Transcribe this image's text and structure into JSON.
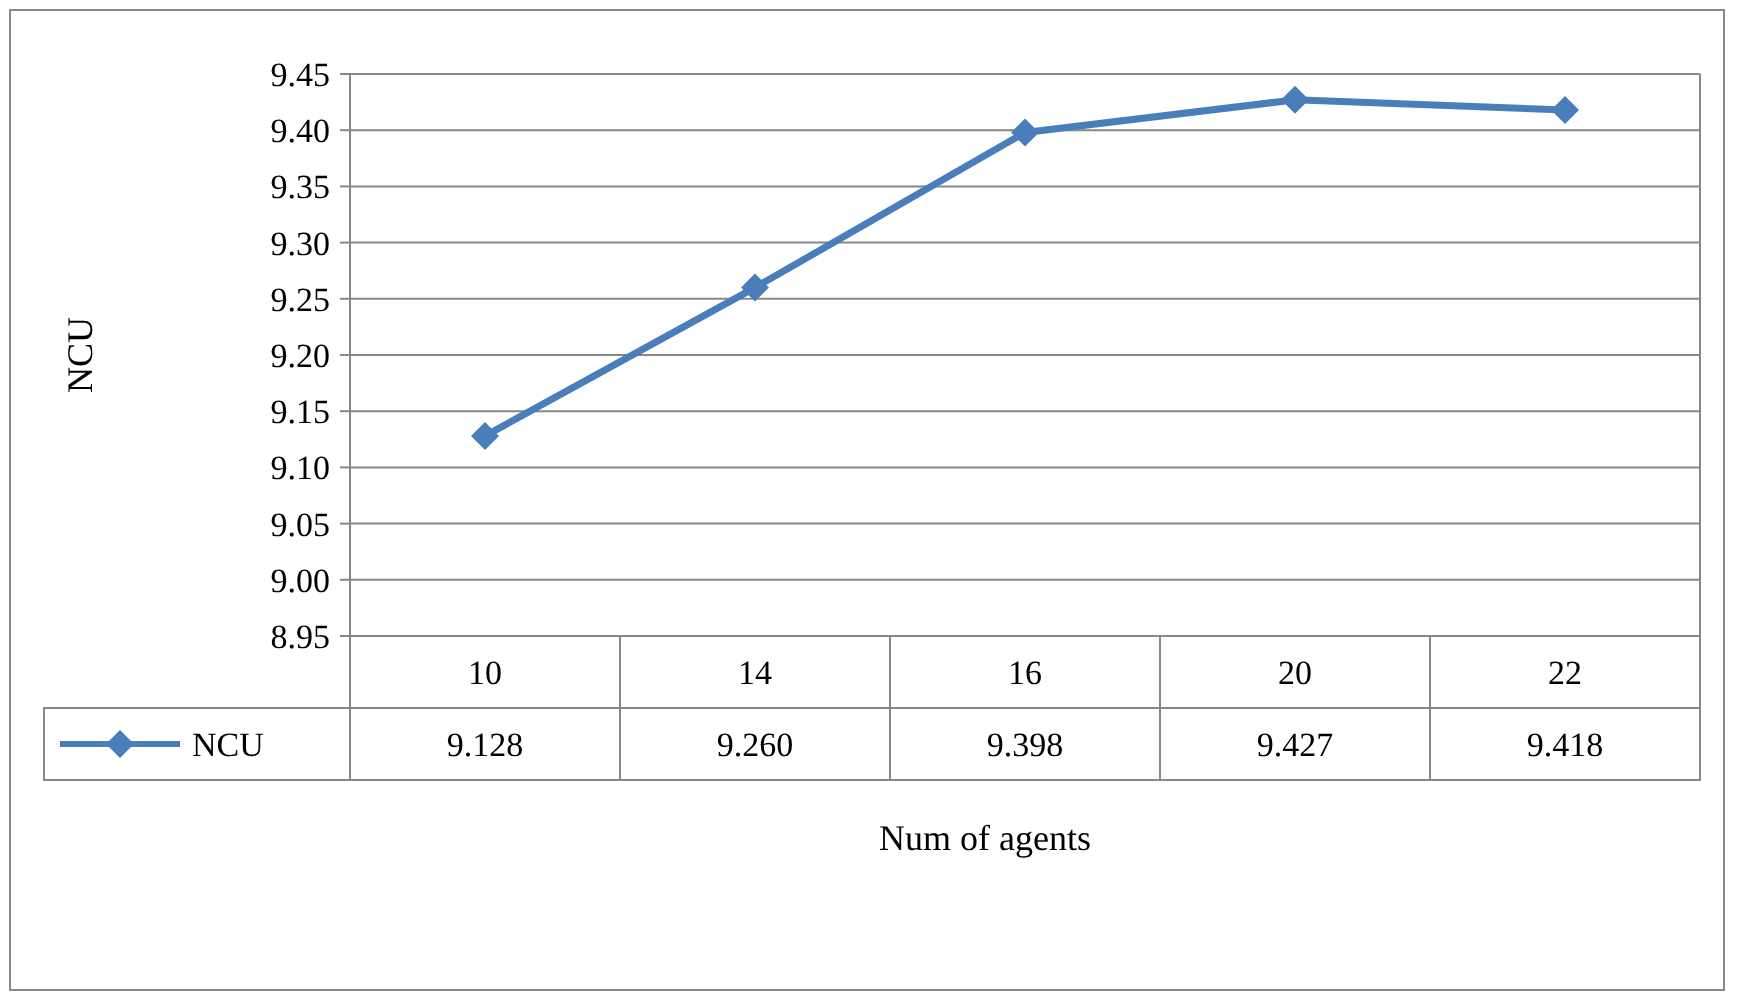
{
  "chart_data": {
    "type": "line",
    "xlabel": "Num of agents",
    "ylabel": "NCU",
    "categories": [
      "10",
      "14",
      "16",
      "20",
      "22"
    ],
    "series": [
      {
        "name": "NCU",
        "color": "#4a7ebb",
        "values": [
          9.128,
          9.26,
          9.398,
          9.427,
          9.418
        ],
        "value_labels": [
          "9.128",
          "9.260",
          "9.398",
          "9.427",
          "9.418"
        ]
      }
    ],
    "ylim": [
      8.95,
      9.45
    ],
    "yticks": [
      {
        "value": 8.95,
        "label": "8.95"
      },
      {
        "value": 9.0,
        "label": "9.00"
      },
      {
        "value": 9.05,
        "label": "9.05"
      },
      {
        "value": 9.1,
        "label": "9.10"
      },
      {
        "value": 9.15,
        "label": "9.15"
      },
      {
        "value": 9.2,
        "label": "9.20"
      },
      {
        "value": 9.25,
        "label": "9.25"
      },
      {
        "value": 9.3,
        "label": "9.30"
      },
      {
        "value": 9.35,
        "label": "9.35"
      },
      {
        "value": 9.4,
        "label": "9.40"
      },
      {
        "value": 9.45,
        "label": "9.45"
      }
    ],
    "grid": "y",
    "legend": "bottom left",
    "marker": "diamond",
    "line_style": "solid"
  }
}
